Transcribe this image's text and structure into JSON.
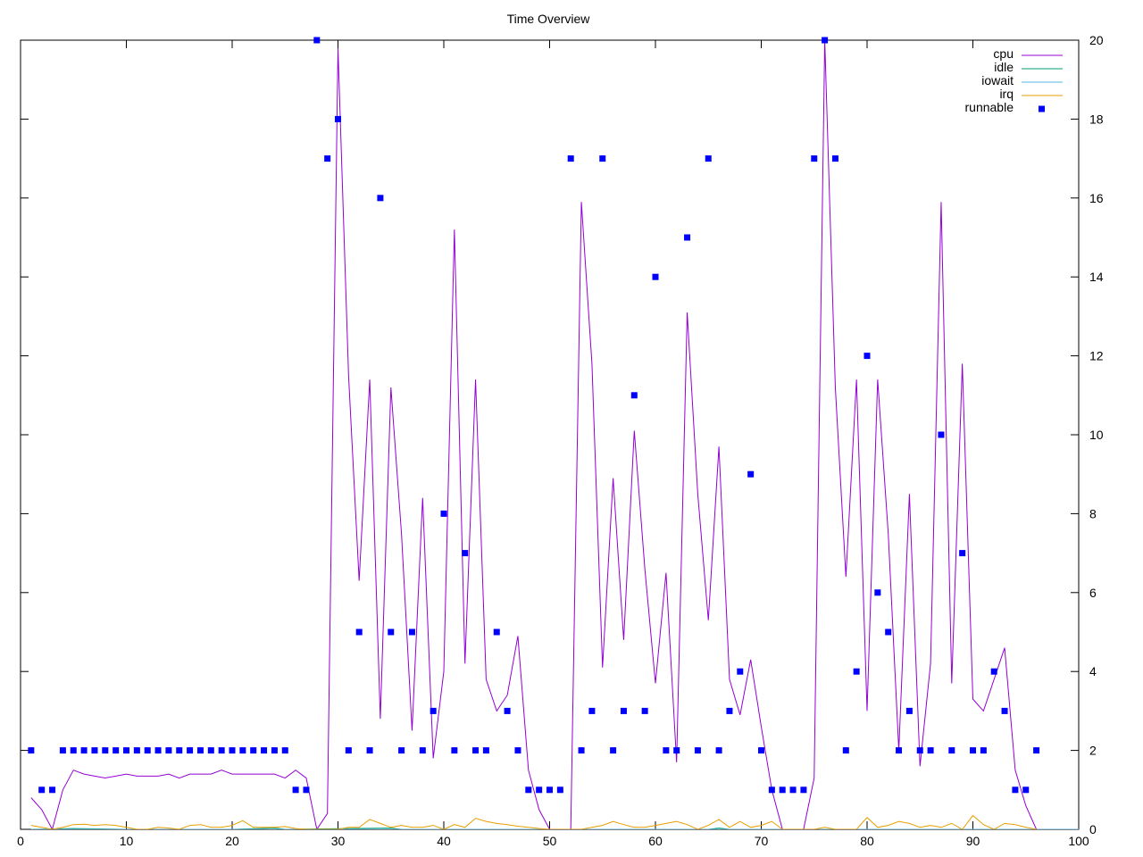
{
  "chart_data": {
    "type": "line",
    "title": "Time Overview",
    "xlim": [
      0,
      100
    ],
    "ylim": [
      0,
      20
    ],
    "x_ticks": [
      0,
      10,
      20,
      30,
      40,
      50,
      60,
      70,
      80,
      90,
      100
    ],
    "y_ticks": [
      0,
      2,
      4,
      6,
      8,
      10,
      12,
      14,
      16,
      18,
      20
    ],
    "y_axis_side": "right",
    "grid": false,
    "legend_position": "top-right",
    "series": [
      {
        "name": "cpu",
        "style": "line",
        "color": "#9400d3",
        "x": [
          1,
          2,
          3,
          4,
          5,
          6,
          7,
          8,
          9,
          10,
          11,
          12,
          13,
          14,
          15,
          16,
          17,
          18,
          19,
          20,
          21,
          22,
          23,
          24,
          25,
          26,
          27,
          28,
          29,
          30,
          31,
          32,
          33,
          34,
          35,
          36,
          37,
          38,
          39,
          40,
          41,
          42,
          43,
          44,
          45,
          46,
          47,
          48,
          49,
          50,
          51,
          52,
          53,
          54,
          55,
          56,
          57,
          58,
          59,
          60,
          61,
          62,
          63,
          64,
          65,
          66,
          67,
          68,
          69,
          70,
          71,
          72,
          73,
          74,
          75,
          76,
          77,
          78,
          79,
          80,
          81,
          82,
          83,
          84,
          85,
          86,
          87,
          88,
          89,
          90,
          91,
          92,
          93,
          94,
          95,
          96
        ],
        "y": [
          0.8,
          0.5,
          0,
          1,
          1.5,
          1.4,
          1.35,
          1.3,
          1.35,
          1.4,
          1.35,
          1.35,
          1.35,
          1.4,
          1.3,
          1.4,
          1.4,
          1.4,
          1.5,
          1.4,
          1.4,
          1.4,
          1.4,
          1.4,
          1.3,
          1.5,
          1.3,
          0,
          0.4,
          19.8,
          11.5,
          6.3,
          11.4,
          2.8,
          11.2,
          7.5,
          2.5,
          8.4,
          1.8,
          4,
          15.2,
          4.2,
          11.4,
          3.8,
          3,
          3.4,
          4.9,
          1.5,
          0.5,
          -0.2,
          -0.2,
          0,
          15.9,
          11.8,
          4.1,
          8.9,
          4.8,
          10.1,
          6.6,
          3.7,
          6.5,
          1.7,
          13.1,
          8.5,
          5.3,
          9.7,
          3.8,
          2.9,
          4.3,
          2.6,
          1,
          0,
          0,
          0,
          1.3,
          20,
          11.2,
          6.4,
          11.4,
          3,
          11.4,
          7.5,
          2,
          8.5,
          1.6,
          4.2,
          15.9,
          3.7,
          11.8,
          3.3,
          3,
          3.8,
          4.6,
          1.5,
          0.6,
          0
        ]
      },
      {
        "name": "idle",
        "style": "line",
        "color": "#009e73",
        "x": [
          1,
          5,
          10,
          20,
          24,
          25,
          35,
          36,
          50,
          60,
          65,
          66,
          67,
          100
        ],
        "y": [
          0,
          0.02,
          0,
          0,
          0.03,
          0,
          0.03,
          0,
          0,
          0,
          0,
          0.03,
          0,
          0
        ]
      },
      {
        "name": "iowait",
        "style": "line",
        "color": "#56b4e9",
        "x": [
          1,
          100
        ],
        "y": [
          0,
          0
        ]
      },
      {
        "name": "irq",
        "style": "line",
        "color": "#e69f00",
        "x": [
          1,
          2,
          3,
          4,
          5,
          6,
          7,
          8,
          9,
          10,
          11,
          12,
          13,
          14,
          15,
          16,
          17,
          18,
          19,
          20,
          21,
          22,
          23,
          24,
          25,
          26,
          27,
          28,
          29,
          30,
          31,
          32,
          33,
          34,
          35,
          36,
          37,
          38,
          39,
          40,
          41,
          42,
          43,
          44,
          45,
          46,
          47,
          48,
          49,
          50,
          51,
          52,
          53,
          54,
          55,
          56,
          57,
          58,
          59,
          60,
          61,
          62,
          63,
          64,
          65,
          66,
          67,
          68,
          69,
          70,
          71,
          72,
          73,
          74,
          75,
          76,
          77,
          78,
          79,
          80,
          81,
          82,
          83,
          84,
          85,
          86,
          87,
          88,
          89,
          90,
          91,
          92,
          93,
          94,
          95,
          96
        ],
        "y": [
          0.1,
          0.05,
          0,
          0.05,
          0.12,
          0.13,
          0.1,
          0.12,
          0.1,
          0.05,
          0,
          0,
          0.05,
          0.03,
          0,
          0.1,
          0.12,
          0.05,
          0.05,
          0.1,
          0.22,
          0.05,
          0.05,
          0.05,
          0.07,
          0.02,
          0,
          0,
          0,
          0,
          0.05,
          0.05,
          0.25,
          0.15,
          0.05,
          0.1,
          0.05,
          0.05,
          0.1,
          0,
          0.12,
          0.05,
          0.28,
          0.2,
          0.15,
          0.12,
          0.08,
          0.05,
          0.02,
          0,
          0,
          0,
          0,
          0.05,
          0.1,
          0.2,
          0.12,
          0.05,
          0.05,
          0.1,
          0.15,
          0.2,
          0.12,
          0,
          0.1,
          0.25,
          0.05,
          0.2,
          0.05,
          0.1,
          0.2,
          0,
          0,
          0,
          0,
          0.05,
          0,
          0,
          0,
          0.3,
          0.05,
          0.1,
          0.2,
          0.15,
          0.05,
          0.1,
          0.05,
          0.15,
          0,
          0.35,
          0.12,
          0,
          0.15,
          0.12,
          0.05,
          0
        ]
      },
      {
        "name": "runnable",
        "style": "points",
        "color": "#0000ff",
        "x": [
          1,
          2,
          3,
          4,
          5,
          6,
          7,
          8,
          9,
          10,
          11,
          12,
          13,
          14,
          15,
          16,
          17,
          18,
          19,
          20,
          21,
          22,
          23,
          24,
          25,
          26,
          27,
          28,
          29,
          30,
          31,
          32,
          33,
          34,
          35,
          36,
          37,
          38,
          39,
          40,
          41,
          42,
          43,
          44,
          45,
          46,
          47,
          48,
          49,
          50,
          51,
          52,
          53,
          54,
          55,
          56,
          57,
          58,
          59,
          60,
          61,
          62,
          63,
          64,
          65,
          66,
          67,
          68,
          69,
          70,
          71,
          72,
          73,
          74,
          75,
          76,
          77,
          78,
          79,
          80,
          81,
          82,
          83,
          84,
          85,
          86,
          87,
          88,
          89,
          90,
          91,
          92,
          93,
          94,
          95,
          96
        ],
        "y": [
          2,
          1,
          1,
          2,
          2,
          2,
          2,
          2,
          2,
          2,
          2,
          2,
          2,
          2,
          2,
          2,
          2,
          2,
          2,
          2,
          2,
          2,
          2,
          2,
          2,
          1,
          1,
          20,
          17,
          18,
          2,
          5,
          2,
          16,
          5,
          2,
          5,
          2,
          3,
          8,
          2,
          7,
          2,
          2,
          5,
          3,
          2,
          1,
          1,
          1,
          1,
          17,
          2,
          3,
          17,
          2,
          3,
          11,
          3,
          14,
          2,
          2,
          15,
          2,
          17,
          2,
          3,
          4,
          9,
          2,
          1,
          1,
          1,
          1,
          17,
          20,
          17,
          2,
          4,
          12,
          6,
          5,
          2,
          3,
          2,
          2,
          10,
          2,
          7,
          2,
          2,
          4,
          3,
          1,
          1,
          2
        ]
      }
    ]
  }
}
